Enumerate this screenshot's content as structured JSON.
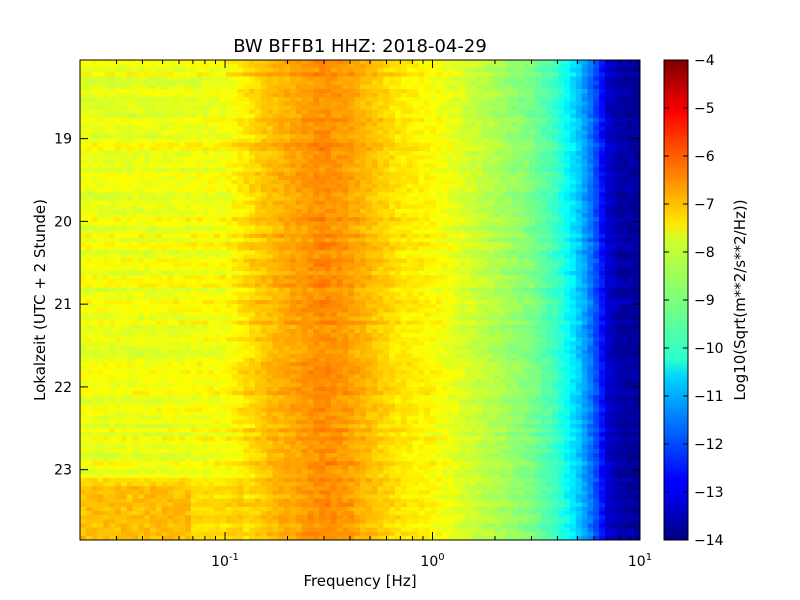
{
  "chart_data": {
    "type": "heatmap",
    "title": "BW BFFB1 HHZ: 2018-04-29",
    "xlabel": "Frequency [Hz]",
    "ylabel": "Lokalzeit (UTC + 2 Stunde)",
    "colorbar_label": "Log10(Sqrt(m**2/s**2/Hz))",
    "x_scale": "log",
    "xlim": [
      0.02,
      10
    ],
    "ylim": [
      23.85,
      18.05
    ],
    "y_inverted": true,
    "clim": [
      -14,
      -4
    ],
    "colormap": "jet",
    "x_ticks": [
      {
        "value": 0.1,
        "base": "10",
        "exp": "-1"
      },
      {
        "value": 1,
        "base": "10",
        "exp": "0"
      },
      {
        "value": 10,
        "base": "10",
        "exp": "1"
      }
    ],
    "y_ticks": [
      19,
      20,
      21,
      22,
      23
    ],
    "y_tick_labels": [
      "19",
      "20",
      "21",
      "22",
      "23"
    ],
    "colorbar_ticks": [
      -4,
      -5,
      -6,
      -7,
      -8,
      -9,
      -10,
      -11,
      -12,
      -13,
      -14
    ],
    "colorbar_tick_labels": [
      "−4",
      "−5",
      "−6",
      "−7",
      "−8",
      "−9",
      "−10",
      "−11",
      "−12",
      "−13",
      "−14"
    ],
    "spectrum_profile": {
      "frequency_hz": [
        0.02,
        0.05,
        0.1,
        0.15,
        0.2,
        0.3,
        0.4,
        0.5,
        0.7,
        1.0,
        1.3,
        2.0,
        3.0,
        4.0,
        5.0,
        6.0,
        7.0,
        8.0,
        10.0
      ],
      "log10_psd": [
        -7.9,
        -7.9,
        -7.8,
        -7.2,
        -6.9,
        -6.6,
        -6.8,
        -7.1,
        -7.5,
        -7.7,
        -8.0,
        -8.5,
        -9.0,
        -9.7,
        -10.7,
        -11.8,
        -13.2,
        -13.6,
        -13.7
      ]
    },
    "late_hours_low_freq": {
      "time_h": [
        23.0,
        23.85
      ],
      "log10_psd_near_0_03hz": -6.9
    }
  }
}
